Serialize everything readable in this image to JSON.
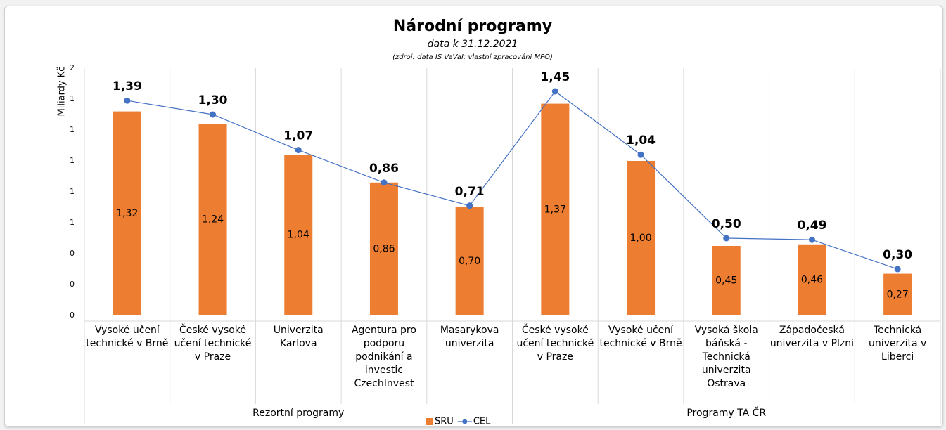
{
  "chart_data": {
    "type": "bar-line",
    "title": "Národní programy",
    "subtitle": "data k 31.12.2021",
    "source": "(zdroj: data IS VaVaI; vlastní zpracování MPO)",
    "y_label": "Miliardy Kč",
    "groups": [
      {
        "name": "Rezortní programy",
        "categories": [
          "Vysoké učení technické v Brně",
          "České vysoké učení technické v Praze",
          "Univerzita Karlova",
          "Agentura pro podporu podnikání a investic CzechInvest",
          "Masarykova univerzita"
        ]
      },
      {
        "name": "Programy TA ČR",
        "categories": [
          "České vysoké učení technické v Praze",
          "Vysoké učení technické v Brně",
          "Vysoká škola báňská - Technická univerzita Ostrava",
          "Západočeská univerzita v Plzni",
          "Technická univerzita v Liberci"
        ]
      }
    ],
    "series": [
      {
        "name": "SRU",
        "kind": "bar",
        "color": "#ED7D31",
        "values": [
          1.32,
          1.24,
          1.04,
          0.86,
          0.7,
          1.37,
          1.0,
          0.45,
          0.46,
          0.27
        ],
        "value_labels": [
          "1,32",
          "1,24",
          "1,04",
          "0,86",
          "0,70",
          "1,37",
          "1,00",
          "0,45",
          "0,46",
          "0,27"
        ]
      },
      {
        "name": "CEL",
        "kind": "line",
        "color": "#4472C4",
        "values": [
          1.39,
          1.3,
          1.07,
          0.86,
          0.71,
          1.45,
          1.04,
          0.5,
          0.49,
          0.3
        ],
        "value_labels": [
          "1,39",
          "1,30",
          "1,07",
          "0,86",
          "0,71",
          "1,45",
          "1,04",
          "0,50",
          "0,49",
          "0,30"
        ]
      }
    ],
    "ylim": [
      0,
      1.6
    ],
    "yticks": [
      0,
      {
        "value": 0.2,
        "label": "0"
      },
      {
        "value": 0.4,
        "label": "0"
      },
      {
        "value": 0.6,
        "label": "1"
      },
      {
        "value": 0.8,
        "label": "1"
      },
      1,
      {
        "value": 1.2,
        "label": "1"
      },
      {
        "value": 1.4,
        "label": "1"
      },
      {
        "value": 1.6,
        "label": "2"
      }
    ],
    "legend": "bottom"
  }
}
